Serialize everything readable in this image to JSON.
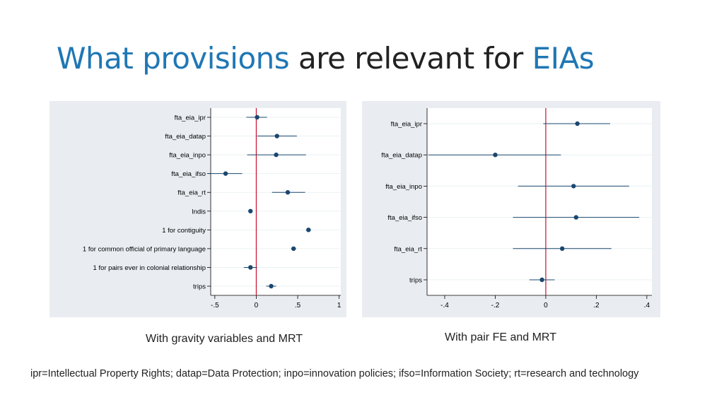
{
  "title": {
    "part1": "What provisions",
    "part2": " are relevant for ",
    "part3": "EIAs"
  },
  "captions": {
    "left": "With gravity variables and MRT",
    "right": "With pair FE and MRT"
  },
  "footnote": "ipr=Intellectual Property Rights; datap=Data Protection; inpo=innovation policies; ifso=Information Society; rt=research and technology",
  "colors": {
    "accent": "#1f77b4",
    "marker": "#1a476f",
    "zero_line": "#c8102e",
    "panel_bg": "#e9edf2"
  },
  "chart_data": [
    {
      "type": "scatter",
      "subtype": "coefficient-plot",
      "title": "",
      "xlabel": "",
      "ylabel": "",
      "xlim": [
        -0.55,
        1.02
      ],
      "xticks": [
        -0.5,
        0,
        0.5,
        1
      ],
      "xtick_labels": [
        "-.5",
        "0",
        ".5",
        "1"
      ],
      "reference_line": 0,
      "grid": true,
      "categories": [
        "fta_eia_ipr",
        "fta_eia_datap",
        "fta_eia_inpo",
        "fta_eia_ifso",
        "fta_eia_rt",
        "lndis",
        "1 for contiguity",
        "1 for common official of primary language",
        "1 for pairs ever in colonial relationship",
        "trips"
      ],
      "values": [
        0.01,
        0.25,
        0.24,
        -0.37,
        0.38,
        -0.07,
        0.63,
        0.45,
        -0.07,
        0.18
      ],
      "ci_low": [
        -0.12,
        0.01,
        -0.11,
        -0.57,
        0.19,
        -0.08,
        0.6,
        0.42,
        -0.15,
        0.12
      ],
      "ci_high": [
        0.13,
        0.49,
        0.6,
        -0.17,
        0.59,
        -0.06,
        0.66,
        0.48,
        0.01,
        0.24
      ]
    },
    {
      "type": "scatter",
      "subtype": "coefficient-plot",
      "title": "",
      "xlabel": "",
      "ylabel": "",
      "xlim": [
        -0.47,
        0.42
      ],
      "xticks": [
        -0.4,
        -0.2,
        0,
        0.2,
        0.4
      ],
      "xtick_labels": [
        "-.4",
        "-.2",
        "0",
        ".2",
        ".4"
      ],
      "reference_line": 0,
      "grid": true,
      "categories": [
        "fta_eia_ipr",
        "fta_eia_datap",
        "fta_eia_inpo",
        "fta_eia_ifso",
        "fta_eia_rt",
        "trips"
      ],
      "values": [
        0.125,
        -0.2,
        0.11,
        0.12,
        0.065,
        -0.015
      ],
      "ci_low": [
        -0.01,
        -0.465,
        -0.11,
        -0.13,
        -0.13,
        -0.065
      ],
      "ci_high": [
        0.255,
        0.06,
        0.33,
        0.37,
        0.26,
        0.035
      ]
    }
  ]
}
